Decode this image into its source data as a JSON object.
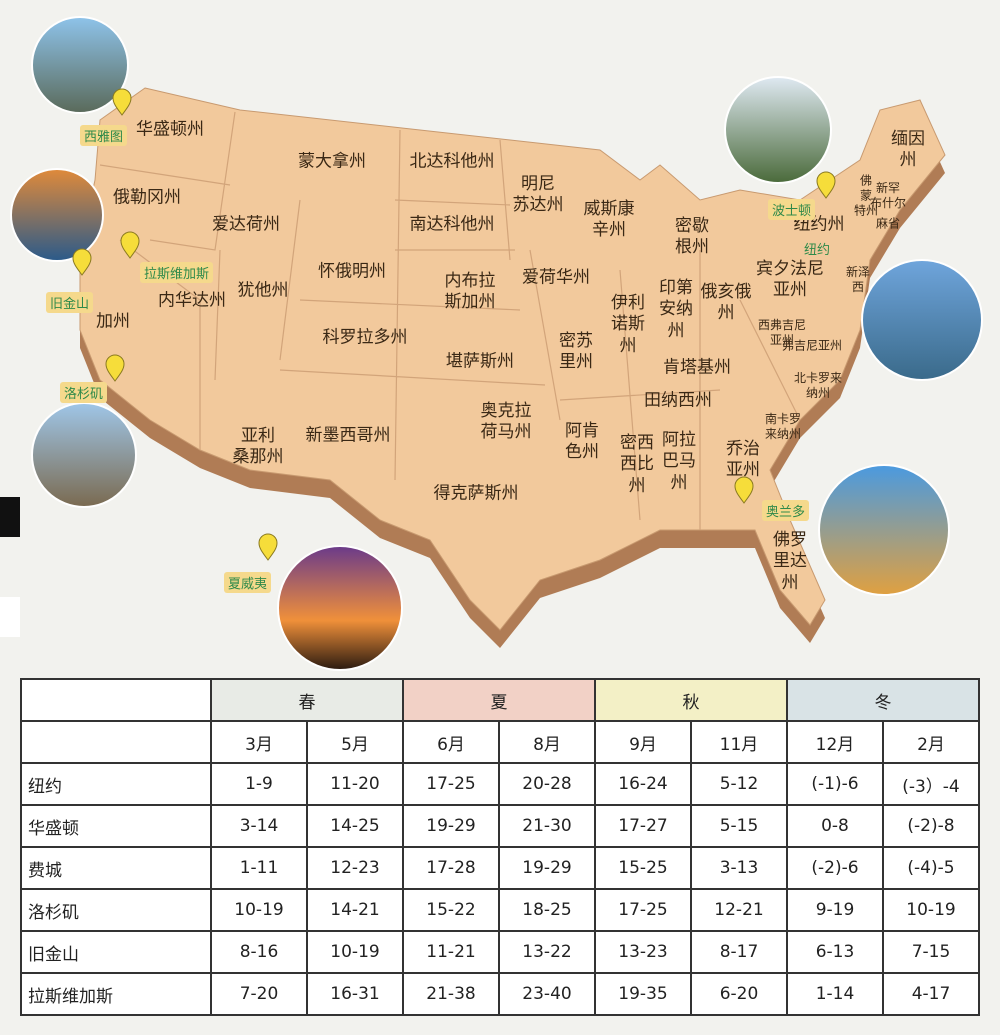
{
  "map": {
    "states": [
      "华盛顿州",
      "蒙大拿州",
      "北达科他州",
      "明尼苏达州",
      "缅因州",
      "俄勒冈州",
      "爱达荷州",
      "南达科他州",
      "威斯康辛州",
      "密歇根州",
      "佛蒙特州",
      "新罕布什尔",
      "麻省",
      "纽约州",
      "怀俄明州",
      "内布拉斯加州",
      "爱荷华州",
      "宾夕法尼亚州",
      "新泽西",
      "内华达州",
      "犹他州",
      "加州",
      "科罗拉多州",
      "伊利诺斯州",
      "印第安纳州",
      "俄亥俄州",
      "西弗吉尼亚州",
      "弗吉尼亚州",
      "堪萨斯州",
      "密苏里州",
      "肯塔基州",
      "田纳西州",
      "北卡罗来纳州",
      "奥克拉荷马州",
      "阿肯色州",
      "南卡罗来纳州",
      "亚利桑那州",
      "新墨西哥州",
      "密西西比州",
      "阿拉巴马州",
      "乔治亚州",
      "得克萨斯州",
      "佛罗里达州"
    ],
    "cities": [
      "西雅图",
      "旧金山",
      "拉斯维加斯",
      "洛杉矶",
      "夏威夷",
      "波士顿",
      "纽约",
      "奥兰多"
    ]
  },
  "table": {
    "seasons": [
      "春",
      "夏",
      "秋",
      "冬"
    ],
    "months": [
      "3月",
      "5月",
      "6月",
      "8月",
      "9月",
      "11月",
      "12月",
      "2月"
    ],
    "rows": [
      [
        "纽约",
        "1-9",
        "11-20",
        "17-25",
        "20-28",
        "16-24",
        "5-12",
        "(-1)-6",
        "(-3）-4"
      ],
      [
        "华盛顿",
        "3-14",
        "14-25",
        "19-29",
        "21-30",
        "17-27",
        "5-15",
        "0-8",
        "(-2)-8"
      ],
      [
        "费城",
        "1-11",
        "12-23",
        "17-28",
        "19-29",
        "15-25",
        "3-13",
        "(-2)-6",
        "(-4)-5"
      ],
      [
        "洛杉矶",
        "10-19",
        "14-21",
        "15-22",
        "18-25",
        "17-25",
        "12-21",
        "9-19",
        "10-19"
      ],
      [
        "旧金山",
        "8-16",
        "10-19",
        "11-21",
        "13-22",
        "13-23",
        "8-17",
        "6-13",
        "7-15"
      ],
      [
        "拉斯维加斯",
        "7-20",
        "16-31",
        "21-38",
        "23-40",
        "19-35",
        "6-20",
        "1-14",
        "4-17"
      ]
    ]
  }
}
